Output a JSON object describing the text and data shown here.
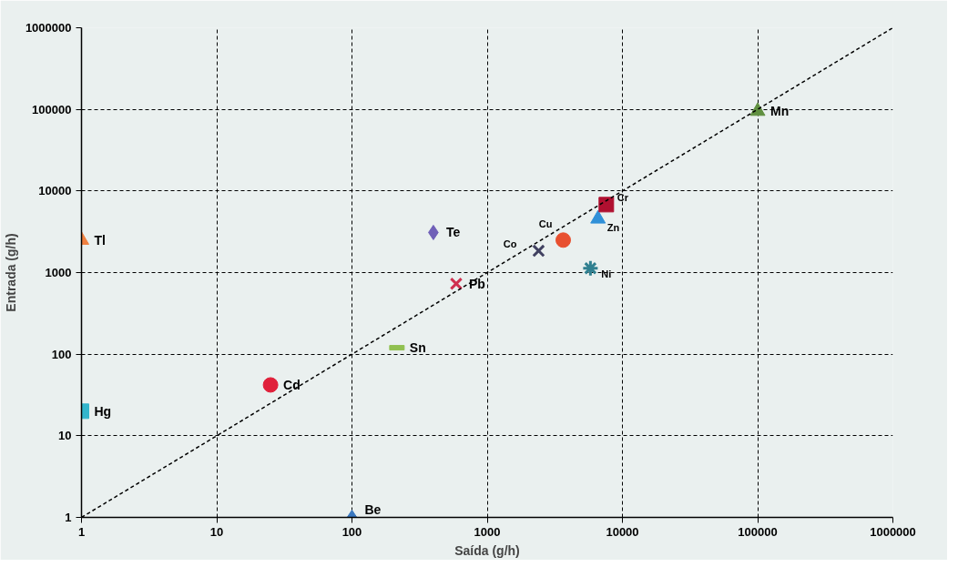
{
  "chart_data": {
    "type": "scatter",
    "xlabel": "Saída (g/h)",
    "ylabel": "Entrada (g/h)",
    "log": "xy",
    "grid": true,
    "xlim": [
      1,
      1000000
    ],
    "ylim": [
      1,
      1000000
    ],
    "xticks": [
      1,
      10,
      100,
      1000,
      10000,
      100000,
      1000000
    ],
    "yticks": [
      1,
      10,
      100,
      1000,
      10000,
      100000,
      1000000
    ],
    "series": [
      {
        "name": "Tl",
        "color": "#f08040",
        "marker": "triangle",
        "x": [
          1
        ],
        "values": [
          2500
        ]
      },
      {
        "name": "Hg",
        "color": "#33b5cc",
        "marker": "square",
        "x": [
          1
        ],
        "values": [
          20
        ]
      },
      {
        "name": "Cd",
        "color": "#e0203a",
        "marker": "circle",
        "x": [
          25
        ],
        "values": [
          42
        ]
      },
      {
        "name": "Be",
        "color": "#3a78c0",
        "marker": "diamond",
        "x": [
          100
        ],
        "values": [
          1
        ]
      },
      {
        "name": "Sn",
        "color": "#90c050",
        "x": [
          215
        ],
        "values": [
          120
        ]
      },
      {
        "name": "Pb",
        "color": "#d03050",
        "marker": "x",
        "x": [
          590
        ],
        "values": [
          730
        ]
      },
      {
        "name": "Te",
        "color": "#7060b8",
        "marker": "diamond",
        "x": [
          400
        ],
        "values": [
          3100
        ]
      },
      {
        "name": "Co",
        "color": "#404060",
        "marker": "x",
        "x": [
          2400
        ],
        "values": [
          1850
        ]
      },
      {
        "name": "Cu",
        "color": "#e85030",
        "marker": "circle",
        "x": [
          3650
        ],
        "values": [
          2500
        ]
      },
      {
        "name": "Ni",
        "color": "#308090",
        "marker": "cross",
        "x": [
          5800
        ],
        "values": [
          1130
        ]
      },
      {
        "name": "Zn",
        "color": "#3090d8",
        "marker": "triangle",
        "x": [
          6600
        ],
        "values": [
          4550
        ]
      },
      {
        "name": "Cr",
        "color": "#b01030",
        "marker": "square",
        "x": [
          7600
        ],
        "values": [
          6800
        ]
      },
      {
        "name": "Mn",
        "color": "#609040",
        "marker": "triangle",
        "x": [
          100000
        ],
        "values": [
          95000
        ]
      },
      {
        "type": "line",
        "color": "#000000",
        "line_style": "dashed",
        "x": [
          1,
          1000000
        ],
        "values": [
          1,
          1000000
        ]
      }
    ]
  }
}
